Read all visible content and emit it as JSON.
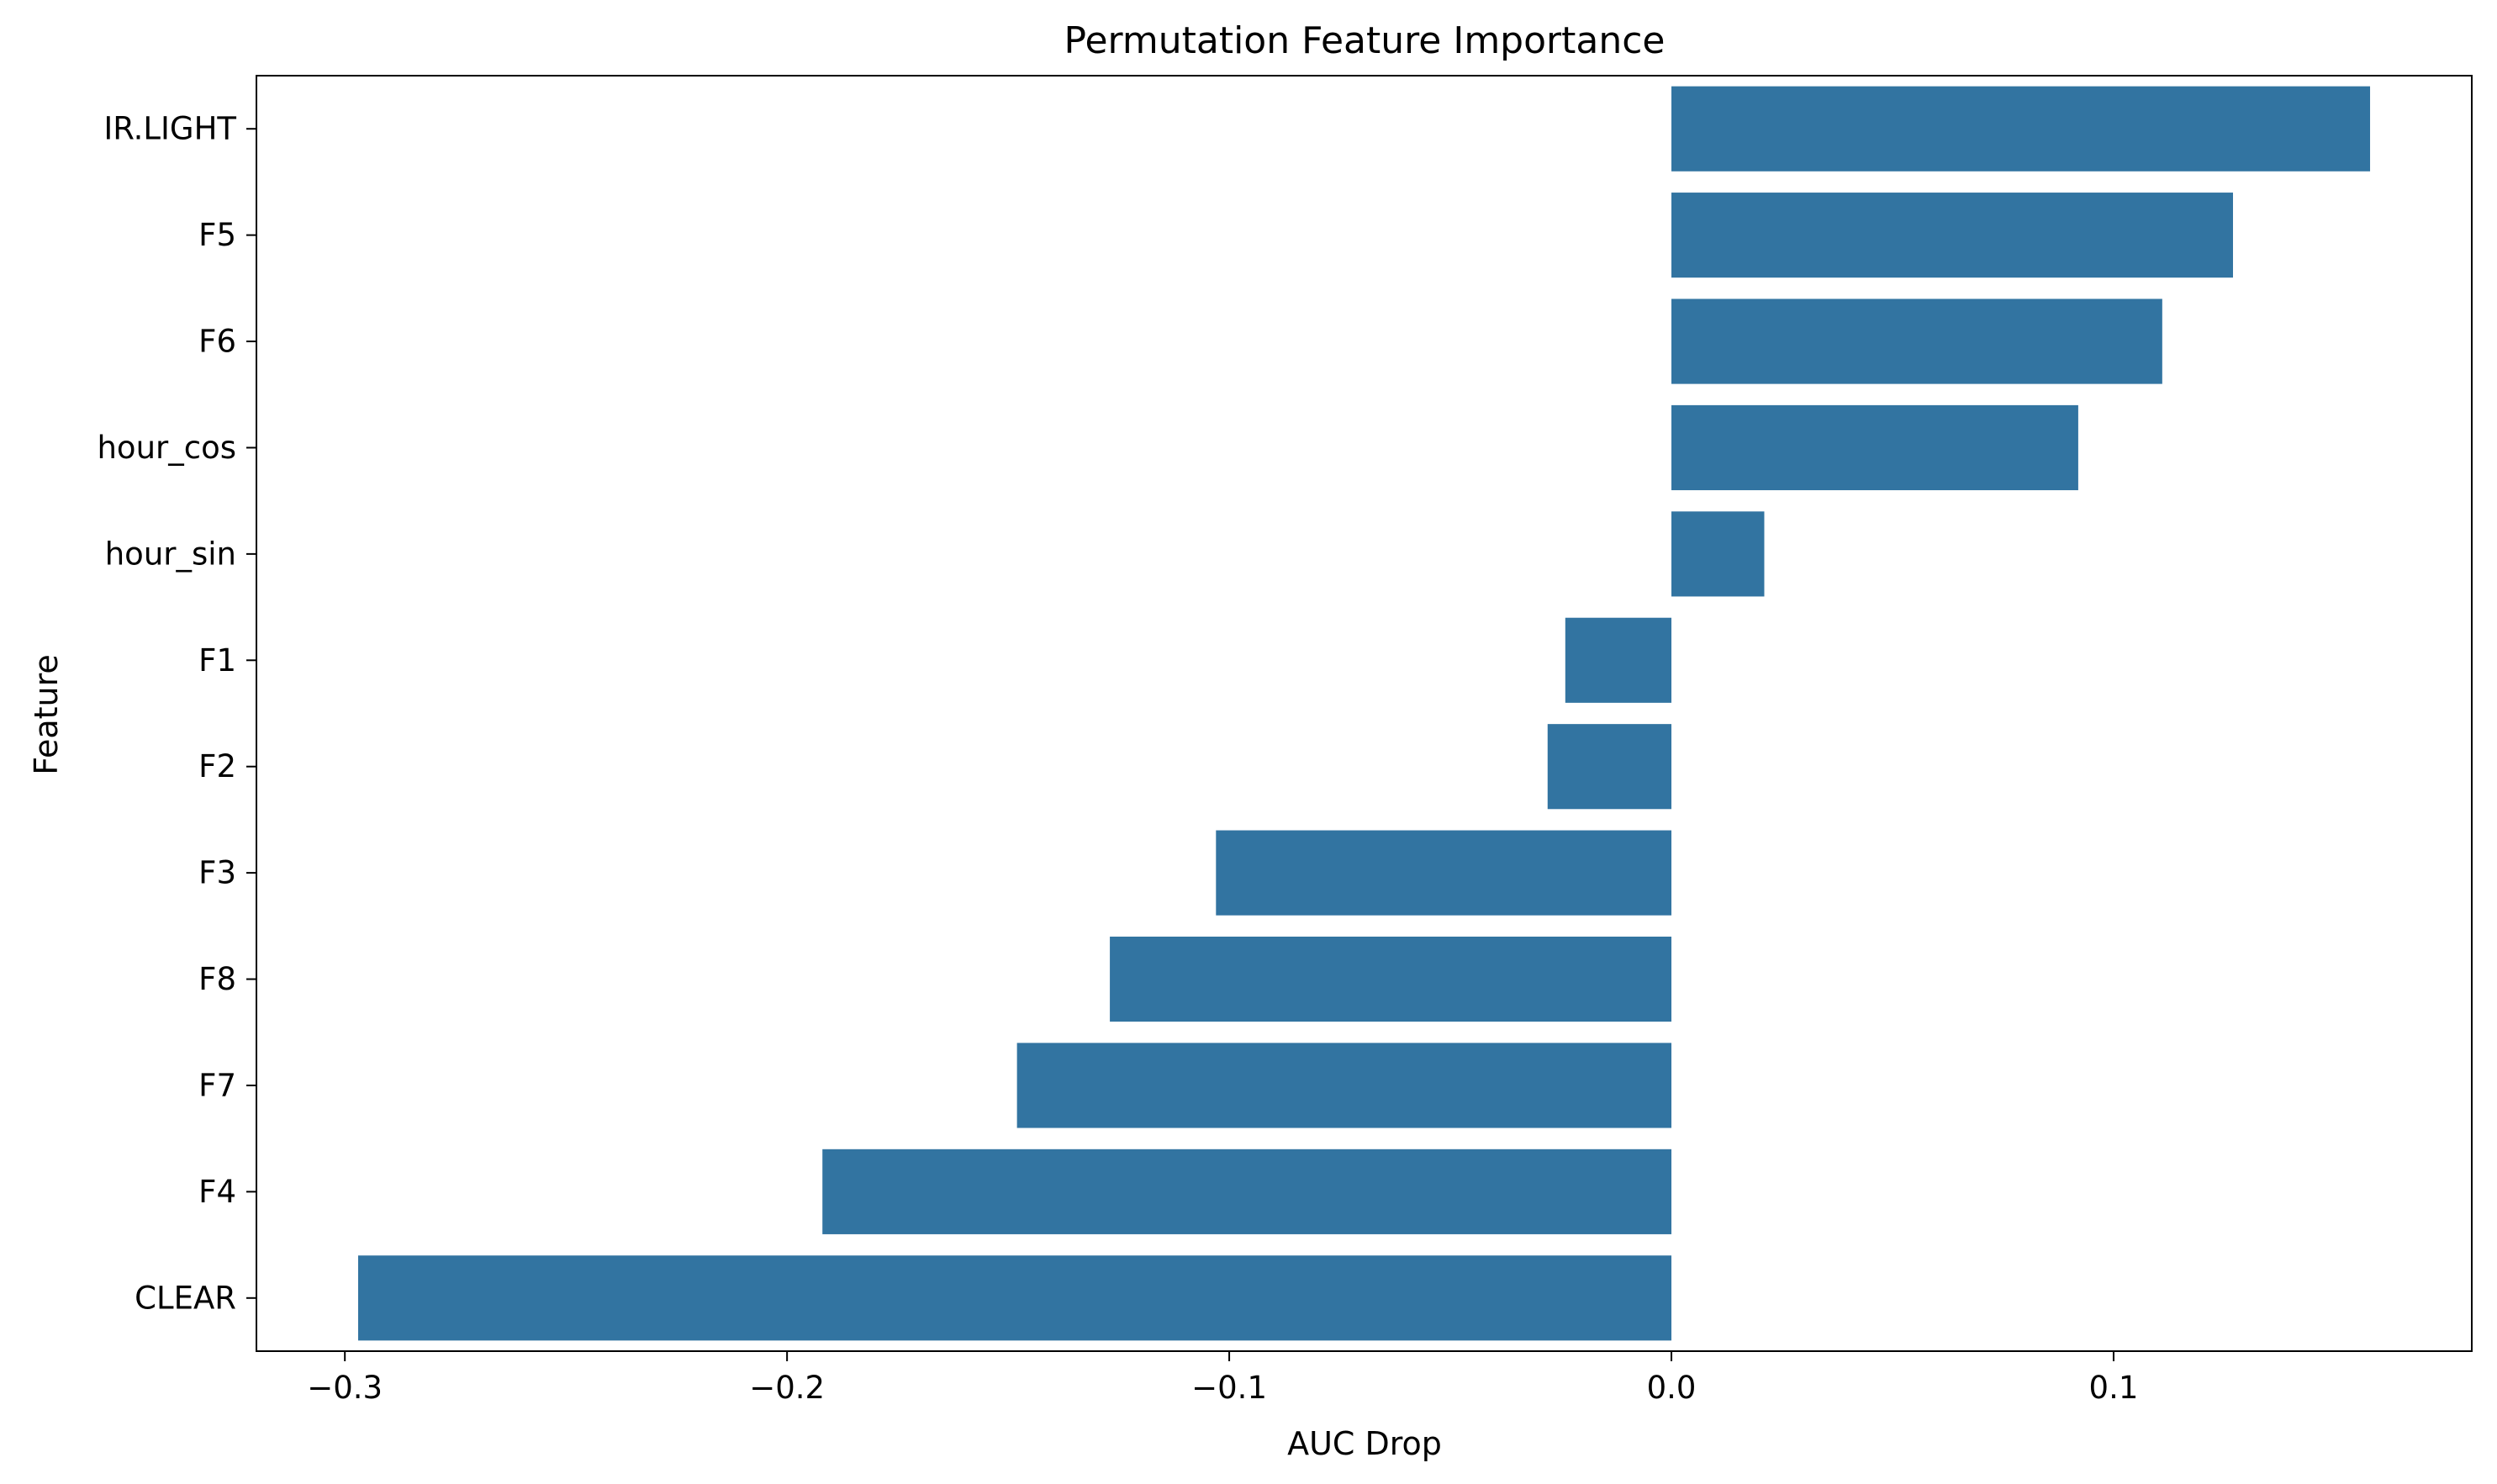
{
  "chart_data": {
    "type": "bar",
    "orientation": "horizontal",
    "title": "Permutation Feature Importance",
    "xlabel": "AUC Drop",
    "ylabel": "Feature",
    "categories": [
      "IR.LIGHT",
      "F5",
      "F6",
      "hour_cos",
      "hour_sin",
      "F1",
      "F2",
      "F3",
      "F8",
      "F7",
      "F4",
      "CLEAR"
    ],
    "values": [
      0.158,
      0.127,
      0.111,
      0.092,
      0.021,
      -0.024,
      -0.028,
      -0.103,
      -0.127,
      -0.148,
      -0.192,
      -0.297
    ],
    "xlim": [
      -0.32,
      0.181
    ],
    "xticks": [
      -0.3,
      -0.2,
      -0.1,
      0.0,
      0.1
    ],
    "xtick_labels": [
      "−0.3",
      "−0.2",
      "−0.1",
      "0.0",
      "0.1"
    ],
    "grid": false,
    "legend": "none",
    "bar_color": "#3274a1"
  }
}
